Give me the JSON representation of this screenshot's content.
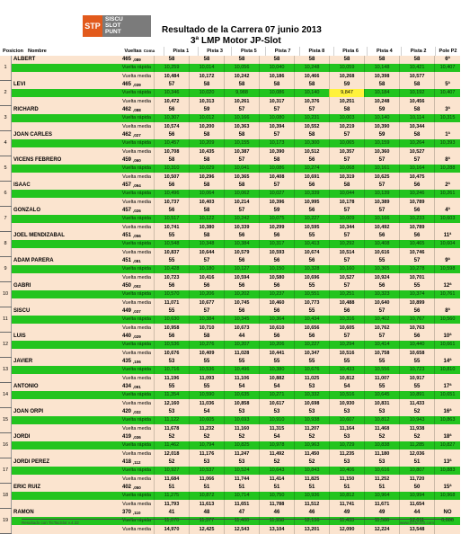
{
  "logo": {
    "stp": "STP",
    "lines": [
      "SISCU",
      "SLOT",
      "PUNT"
    ]
  },
  "title": "Resultado de la Carrera  07 junio 2013",
  "subtitle": "3ª LMP Motor JP-Slot",
  "headers": {
    "pos": "Posicion",
    "nombre": "Nombre",
    "vueltas": "Vueltas",
    "coma": "Coma",
    "pistas": [
      "Pista 1",
      "Pista 3",
      "Pista 5",
      "Pista 7",
      "Pista 8",
      "Pista 6",
      "Pista 4",
      "Pista 2"
    ],
    "pole": "Pole P2"
  },
  "labels": {
    "fastest": "Vuelta rápida",
    "average": "Vuelta media"
  },
  "footer": {
    "left": "Resultado con TicTacSlot v.4.32",
    "right": "www.tictacslot.com"
  },
  "drivers": [
    {
      "pos": "1",
      "name": "ALBERT",
      "laps": "465",
      "coma": ",089",
      "sectors": [
        "58",
        "58",
        "58",
        "58",
        "58",
        "58",
        "58",
        "58"
      ],
      "pole": "6ª",
      "fast": [
        "10,259",
        "10,014",
        "10,056",
        "10,040",
        "10,248",
        "10,059",
        "10,148",
        "10,421"
      ],
      "fast_pole": "10,407",
      "avg": [
        "10,484",
        "10,172",
        "10,242",
        "10,186",
        "10,466",
        "10,268",
        "10,398",
        "10,577"
      ],
      "avg_pole": ""
    },
    {
      "pos": "2",
      "name": "LEVI",
      "laps": "465",
      "coma": ",039",
      "sectors": [
        "57",
        "58",
        "58",
        "58",
        "58",
        "59",
        "58",
        "58"
      ],
      "pole": "5ª",
      "fast": [
        "10,346",
        "10,020",
        "9,988",
        "10,086",
        "10,140",
        "9,847",
        "10,184",
        "10,192"
      ],
      "fast_pole": "10,407",
      "avg": [
        "10,472",
        "10,313",
        "10,261",
        "10,317",
        "10,376",
        "10,251",
        "10,248",
        "10,456"
      ],
      "avg_pole": ""
    },
    {
      "pos": "3",
      "name": "RICHARD",
      "laps": "462",
      "coma": ",088",
      "sectors": [
        "56",
        "59",
        "57",
        "57",
        "57",
        "58",
        "59",
        "58"
      ],
      "pole": "3ª",
      "fast": [
        "10,307",
        "10,012",
        "10,166",
        "10,080",
        "10,231",
        "10,003",
        "10,140",
        "10,114"
      ],
      "fast_pole": "10,315",
      "avg": [
        "10,574",
        "10,200",
        "10,363",
        "10,394",
        "10,552",
        "10,219",
        "10,390",
        "10,344"
      ],
      "avg_pole": ""
    },
    {
      "pos": "4",
      "name": "JOAN CARLES",
      "laps": "462",
      "coma": ",027",
      "sectors": [
        "56",
        "58",
        "58",
        "57",
        "58",
        "57",
        "59",
        "58"
      ],
      "pole": "1ª",
      "fast": [
        "10,457",
        "10,209",
        "10,155",
        "10,173",
        "10,300",
        "10,065",
        "10,159",
        "10,264"
      ],
      "fast_pole": "10,393",
      "avg": [
        "10,708",
        "10,435",
        "10,387",
        "10,390",
        "10,512",
        "10,357",
        "10,360",
        "10,527"
      ],
      "avg_pole": ""
    },
    {
      "pos": "5",
      "name": "VICENS FEBRERO",
      "laps": "459",
      "coma": ",060",
      "sectors": [
        "58",
        "58",
        "57",
        "58",
        "56",
        "57",
        "57",
        "57"
      ],
      "pole": "8ª",
      "fast": [
        "10,310",
        "10,029",
        "10,041",
        "10,086",
        "10,274",
        "10,068",
        "10,161",
        "10,164"
      ],
      "fast_pole": "10,288",
      "avg": [
        "10,507",
        "10,296",
        "10,365",
        "10,408",
        "10,691",
        "10,319",
        "10,625",
        "10,475"
      ],
      "avg_pole": ""
    },
    {
      "pos": "6",
      "name": "ISAAC",
      "laps": "457",
      "coma": ",094",
      "sectors": [
        "56",
        "58",
        "58",
        "57",
        "56",
        "58",
        "57",
        "56"
      ],
      "pole": "2ª",
      "fast": [
        "10,496",
        "10,064",
        "10,062",
        "10,027",
        "10,339",
        "10,044",
        "10,139",
        "10,246"
      ],
      "fast_pole": "10,261",
      "avg": [
        "10,737",
        "10,403",
        "10,214",
        "10,396",
        "10,995",
        "10,178",
        "10,389",
        "10,789"
      ],
      "avg_pole": ""
    },
    {
      "pos": "7",
      "name": "GONZALO",
      "laps": "457",
      "coma": ",026",
      "sectors": [
        "56",
        "58",
        "57",
        "59",
        "56",
        "57",
        "57",
        "56"
      ],
      "pole": "4ª",
      "fast": [
        "10,517",
        "10,122",
        "10,242",
        "10,075",
        "10,227",
        "10,009",
        "10,166",
        "10,233"
      ],
      "fast_pole": "10,603",
      "avg": [
        "10,741",
        "10,380",
        "10,339",
        "10,299",
        "10,595",
        "10,344",
        "10,492",
        "10,789"
      ],
      "avg_pole": ""
    },
    {
      "pos": "8",
      "name": "JOEL MENDIZABAL",
      "laps": "451",
      "coma": ",056",
      "sectors": [
        "55",
        "58",
        "56",
        "56",
        "55",
        "57",
        "56",
        "56"
      ],
      "pole": "11ª",
      "fast": [
        "10,548",
        "10,348",
        "10,384",
        "10,317",
        "10,413",
        "10,292",
        "10,408",
        "10,465"
      ],
      "fast_pole": "10,604",
      "avg": [
        "10,837",
        "10,644",
        "10,579",
        "10,593",
        "10,674",
        "10,514",
        "10,616",
        "10,746"
      ],
      "avg_pole": ""
    },
    {
      "pos": "9",
      "name": "ADAM PARERA",
      "laps": "451",
      "coma": ",081",
      "sectors": [
        "55",
        "57",
        "56",
        "56",
        "56",
        "57",
        "55",
        "57"
      ],
      "pole": "9ª",
      "fast": [
        "10,428",
        "10,180",
        "10,127",
        "10,150",
        "10,328",
        "10,160",
        "10,365",
        "10,278"
      ],
      "fast_pole": "10,598",
      "avg": [
        "10,723",
        "10,416",
        "10,594",
        "10,580",
        "10,696",
        "10,527",
        "10,924",
        "10,701"
      ],
      "avg_pole": ""
    },
    {
      "pos": "10",
      "name": "GABRI",
      "laps": "450",
      "coma": ",002",
      "sectors": [
        "56",
        "56",
        "56",
        "56",
        "55",
        "57",
        "56",
        "55"
      ],
      "pole": "12ª",
      "fast": [
        "10,570",
        "10,206",
        "10,202",
        "10,237",
        "10,551",
        "10,251",
        "10,323",
        "10,374"
      ],
      "fast_pole": "10,761",
      "avg": [
        "11,071",
        "10,677",
        "10,745",
        "10,460",
        "10,773",
        "10,488",
        "10,640",
        "10,899"
      ],
      "avg_pole": ""
    },
    {
      "pos": "11",
      "name": "SISCU",
      "laps": "449",
      "coma": ",037",
      "sectors": [
        "55",
        "57",
        "56",
        "56",
        "55",
        "56",
        "57",
        "56"
      ],
      "pole": "8ª",
      "fast": [
        "10,630",
        "10,384",
        "10,345",
        "10,364",
        "10,434",
        "10,316",
        "10,402",
        "10,767"
      ],
      "fast_pole": "10,560",
      "avg": [
        "10,958",
        "10,710",
        "10,673",
        "10,610",
        "10,656",
        "10,605",
        "10,762",
        "10,763"
      ],
      "avg_pole": ""
    },
    {
      "pos": "12",
      "name": "LUIS",
      "laps": "440",
      "coma": ",029",
      "sectors": [
        "56",
        "58",
        "44",
        "56",
        "56",
        "57",
        "57",
        "56"
      ],
      "pole": "10ª",
      "fast": [
        "10,536",
        "10,276",
        "10,207",
        "10,206",
        "10,227",
        "10,294",
        "10,414",
        "10,440"
      ],
      "fast_pole": "10,661",
      "avg": [
        "10,676",
        "10,409",
        "11,028",
        "10,441",
        "10,347",
        "10,516",
        "10,758",
        "10,658"
      ],
      "avg_pole": ""
    },
    {
      "pos": "13",
      "name": "JAVIER",
      "laps": "435",
      "coma": ",106",
      "sectors": [
        "53",
        "55",
        "55",
        "55",
        "55",
        "55",
        "55",
        "55"
      ],
      "pole": "14ª",
      "fast": [
        "10,716",
        "10,536",
        "10,496",
        "10,380",
        "10,676",
        "10,433",
        "10,556",
        "10,723"
      ],
      "fast_pole": "10,810",
      "avg": [
        "11,196",
        "11,093",
        "11,106",
        "10,882",
        "11,025",
        "10,812",
        "11,007",
        "10,917"
      ],
      "avg_pole": ""
    },
    {
      "pos": "14",
      "name": "ANTONIO",
      "laps": "434",
      "coma": ",091",
      "sectors": [
        "55",
        "55",
        "54",
        "54",
        "53",
        "54",
        "55",
        "55"
      ],
      "pole": "17ª",
      "fast": [
        "11,354",
        "10,590",
        "10,635",
        "10,271",
        "10,332",
        "10,516",
        "10,645",
        "10,891"
      ],
      "fast_pole": "10,651",
      "avg": [
        "12,160",
        "11,036",
        "10,858",
        "10,617",
        "10,698",
        "10,930",
        "10,831",
        "11,433"
      ],
      "avg_pole": ""
    },
    {
      "pos": "15",
      "name": "JOAN ORPI",
      "laps": "420",
      "coma": ",032",
      "sectors": [
        "53",
        "54",
        "53",
        "53",
        "53",
        "53",
        "53",
        "52"
      ],
      "pole": "16ª",
      "fast": [
        "11,122",
        "10,605",
        "10,693",
        "10,910",
        "10,938",
        "10,607",
        "10,812",
        "10,943"
      ],
      "fast_pole": "10,863",
      "avg": [
        "11,678",
        "11,232",
        "11,160",
        "11,315",
        "11,207",
        "11,164",
        "11,468",
        "11,938"
      ],
      "avg_pole": ""
    },
    {
      "pos": "16",
      "name": "JORDI",
      "laps": "419",
      "coma": ",036",
      "sectors": [
        "52",
        "52",
        "52",
        "54",
        "52",
        "53",
        "52",
        "52"
      ],
      "pole": "18ª",
      "fast": [
        "11,462",
        "10,794",
        "10,825",
        "10,978",
        "10,963",
        "10,729",
        "10,838",
        "11,285"
      ],
      "fast_pole": "10,827",
      "avg": [
        "12,018",
        "11,176",
        "11,247",
        "11,492",
        "11,450",
        "11,235",
        "11,180",
        "12,036"
      ],
      "avg_pole": ""
    },
    {
      "pos": "17",
      "name": "JORDI PEREZ",
      "laps": "418",
      "coma": ",112",
      "sectors": [
        "52",
        "53",
        "53",
        "52",
        "52",
        "53",
        "53",
        "51"
      ],
      "pole": "13ª",
      "fast": [
        "10,927",
        "10,537",
        "10,524",
        "10,643",
        "10,843",
        "10,406",
        "10,616",
        "10,807"
      ],
      "fast_pole": "10,883",
      "avg": [
        "11,684",
        "11,066",
        "11,744",
        "11,414",
        "11,825",
        "11,150",
        "11,252",
        "11,720"
      ],
      "avg_pole": ""
    },
    {
      "pos": "18",
      "name": "ERIC RUIZ",
      "laps": "402",
      "coma": ",050",
      "sectors": [
        "51",
        "51",
        "51",
        "51",
        "51",
        "51",
        "51",
        "50"
      ],
      "pole": "15ª",
      "fast": [
        "11,275",
        "10,872",
        "10,714",
        "10,750",
        "10,936",
        "10,812",
        "10,964",
        "10,994"
      ],
      "fast_pole": "10,968",
      "avg": [
        "11,793",
        "11,613",
        "11,651",
        "11,788",
        "11,512",
        "11,741",
        "11,671",
        "11,654"
      ],
      "avg_pole": ""
    },
    {
      "pos": "19",
      "name": "RAMON",
      "laps": "370",
      "coma": ",110",
      "sectors": [
        "41",
        "48",
        "47",
        "46",
        "46",
        "49",
        "49",
        "44"
      ],
      "pole": "NO",
      "fast": [
        "11,070",
        "11,377",
        "11,400",
        "11,958",
        "12,136",
        "11,433",
        "11,586",
        "12,011"
      ],
      "fast_pole": "0,000",
      "avg": [
        "14,970",
        "12,425",
        "12,543",
        "13,104",
        "13,201",
        "12,090",
        "12,224",
        "13,548"
      ],
      "avg_pole": ""
    }
  ],
  "highlights": [
    {
      "driver": 1,
      "row": "fast",
      "col": 5
    }
  ]
}
